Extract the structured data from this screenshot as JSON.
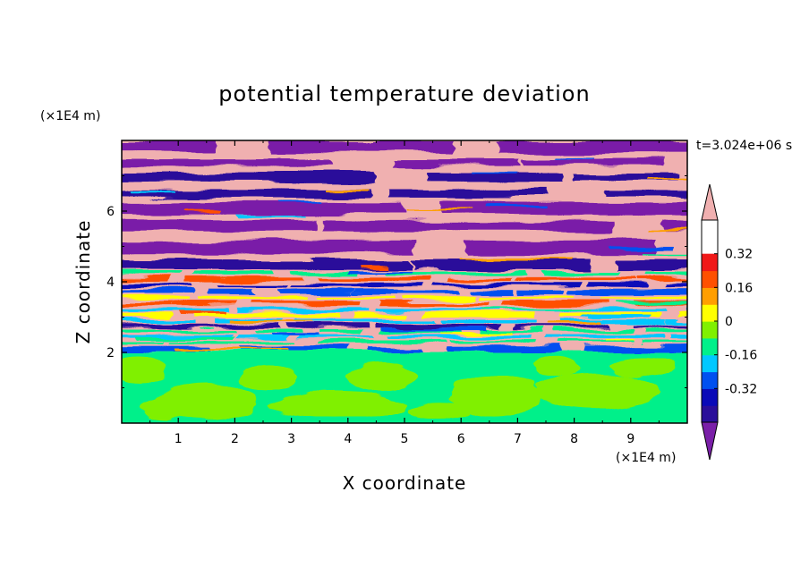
{
  "chart_data": {
    "type": "heatmap",
    "title": "potential temperature deviation",
    "xlabel": "X coordinate",
    "ylabel": "Z coordinate",
    "x_unit": "(×1E4 m)",
    "y_unit": "(×1E4 m)",
    "time_label": "t=3.024e+06 s",
    "xlim": [
      0,
      10
    ],
    "ylim": [
      0,
      8
    ],
    "x_ticks": [
      1,
      2,
      3,
      4,
      5,
      6,
      7,
      8,
      9
    ],
    "y_ticks": [
      2,
      4,
      6
    ],
    "colorbar": {
      "levels": [
        -0.48,
        -0.4,
        -0.32,
        -0.24,
        -0.16,
        -0.08,
        0,
        0.08,
        0.16,
        0.24,
        0.32,
        0.4,
        0.48
      ],
      "colors": [
        "#7a1fa8",
        "#2a0e9a",
        "#0a0ab8",
        "#0050f0",
        "#00c8ff",
        "#00f08a",
        "#80f000",
        "#ffff00",
        "#ff9e00",
        "#ff5000",
        "#f01818",
        "#f0b0b0"
      ],
      "tick_labels": [
        "0.32",
        "0.16",
        "0",
        "-0.16",
        "-0.32"
      ],
      "tick_values": [
        0.32,
        0.16,
        0,
        -0.16,
        -0.32
      ],
      "extend": "both"
    },
    "description": {
      "lower_layer": "z below about 2: values near 0 (green shades)",
      "upper_layer": "z above about 2: alternating horizontal bands of strong positive (pink) and negative (purple) deviation, more mixed between 2 and 4"
    }
  }
}
